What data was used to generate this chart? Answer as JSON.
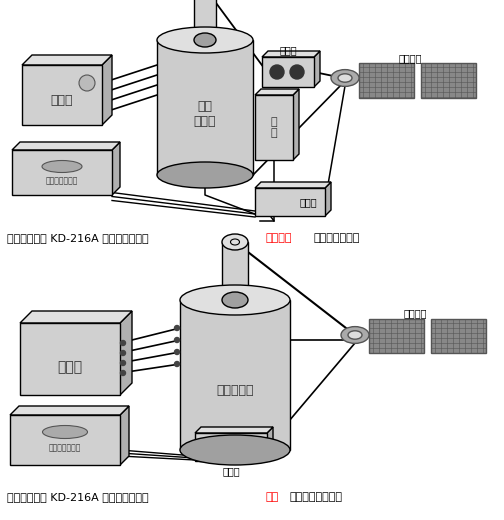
{
  "bg_color": "#ffffff",
  "caption1": [
    {
      "text": "使用凱迪正大 KD-216A 電纜故障測試儀",
      "color": "#000000"
    },
    {
      "text": "冲闪电流",
      "color": "#ff0000"
    },
    {
      "text": "取样方式接线图",
      "color": "#000000"
    }
  ],
  "caption2": [
    {
      "text": "使用凱迪正大 KD-216A 電纜故障測試儀",
      "color": "#000000"
    },
    {
      "text": "直闪",
      "color": "#ff0000"
    },
    {
      "text": "法取样方式接线图",
      "color": "#000000"
    }
  ]
}
